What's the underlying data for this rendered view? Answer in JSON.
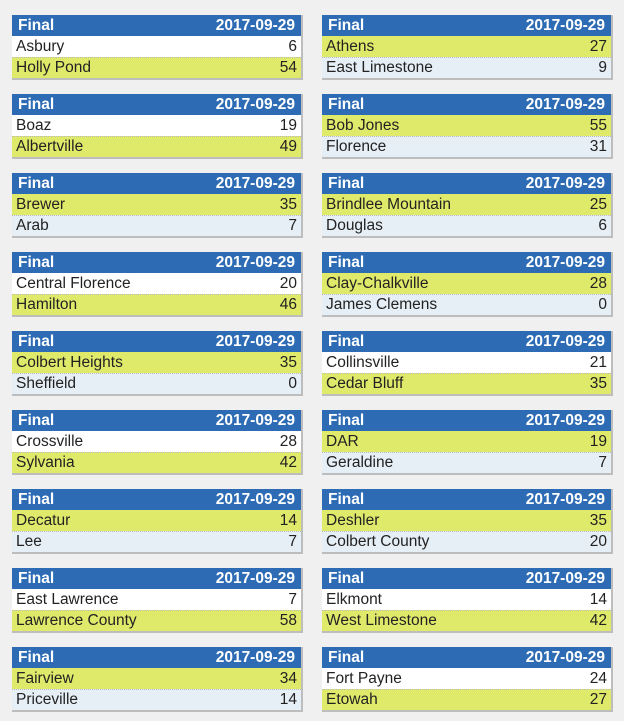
{
  "colors": {
    "header_bg": "#2d6cb5",
    "winner_bg": "#e0ea6a",
    "loser_bg": "#e6eef6",
    "plain_bg": "#ffffff"
  },
  "games": [
    {
      "status": "Final",
      "date": "2017-09-29",
      "teams": [
        {
          "name": "Asbury",
          "score": "6",
          "style": "neutral"
        },
        {
          "name": "Holly Pond",
          "score": "54",
          "style": "win"
        }
      ]
    },
    {
      "status": "Final",
      "date": "2017-09-29",
      "teams": [
        {
          "name": "Athens",
          "score": "27",
          "style": "win"
        },
        {
          "name": "East Limestone",
          "score": "9",
          "style": "lose"
        }
      ]
    },
    {
      "status": "Final",
      "date": "2017-09-29",
      "teams": [
        {
          "name": "Boaz",
          "score": "19",
          "style": "neutral"
        },
        {
          "name": "Albertville",
          "score": "49",
          "style": "win"
        }
      ]
    },
    {
      "status": "Final",
      "date": "2017-09-29",
      "teams": [
        {
          "name": "Bob Jones",
          "score": "55",
          "style": "win"
        },
        {
          "name": "Florence",
          "score": "31",
          "style": "lose"
        }
      ]
    },
    {
      "status": "Final",
      "date": "2017-09-29",
      "teams": [
        {
          "name": "Brewer",
          "score": "35",
          "style": "win"
        },
        {
          "name": "Arab",
          "score": "7",
          "style": "lose"
        }
      ]
    },
    {
      "status": "Final",
      "date": "2017-09-29",
      "teams": [
        {
          "name": "Brindlee Mountain",
          "score": "25",
          "style": "win"
        },
        {
          "name": "Douglas",
          "score": "6",
          "style": "lose"
        }
      ]
    },
    {
      "status": "Final",
      "date": "2017-09-29",
      "teams": [
        {
          "name": "Central Florence",
          "score": "20",
          "style": "neutral"
        },
        {
          "name": "Hamilton",
          "score": "46",
          "style": "win"
        }
      ]
    },
    {
      "status": "Final",
      "date": "2017-09-29",
      "teams": [
        {
          "name": "Clay-Chalkville",
          "score": "28",
          "style": "win"
        },
        {
          "name": "James Clemens",
          "score": "0",
          "style": "lose"
        }
      ]
    },
    {
      "status": "Final",
      "date": "2017-09-29",
      "teams": [
        {
          "name": "Colbert Heights",
          "score": "35",
          "style": "win"
        },
        {
          "name": "Sheffield",
          "score": "0",
          "style": "lose"
        }
      ]
    },
    {
      "status": "Final",
      "date": "2017-09-29",
      "teams": [
        {
          "name": "Collinsville",
          "score": "21",
          "style": "neutral"
        },
        {
          "name": "Cedar Bluff",
          "score": "35",
          "style": "win"
        }
      ]
    },
    {
      "status": "Final",
      "date": "2017-09-29",
      "teams": [
        {
          "name": "Crossville",
          "score": "28",
          "style": "neutral"
        },
        {
          "name": "Sylvania",
          "score": "42",
          "style": "win"
        }
      ]
    },
    {
      "status": "Final",
      "date": "2017-09-29",
      "teams": [
        {
          "name": "DAR",
          "score": "19",
          "style": "win"
        },
        {
          "name": "Geraldine",
          "score": "7",
          "style": "lose"
        }
      ]
    },
    {
      "status": "Final",
      "date": "2017-09-29",
      "teams": [
        {
          "name": "Decatur",
          "score": "14",
          "style": "win"
        },
        {
          "name": "Lee",
          "score": "7",
          "style": "lose"
        }
      ]
    },
    {
      "status": "Final",
      "date": "2017-09-29",
      "teams": [
        {
          "name": "Deshler",
          "score": "35",
          "style": "win"
        },
        {
          "name": "Colbert County",
          "score": "20",
          "style": "lose"
        }
      ]
    },
    {
      "status": "Final",
      "date": "2017-09-29",
      "teams": [
        {
          "name": "East Lawrence",
          "score": "7",
          "style": "neutral"
        },
        {
          "name": "Lawrence County",
          "score": "58",
          "style": "win"
        }
      ]
    },
    {
      "status": "Final",
      "date": "2017-09-29",
      "teams": [
        {
          "name": "Elkmont",
          "score": "14",
          "style": "neutral"
        },
        {
          "name": "West Limestone",
          "score": "42",
          "style": "win"
        }
      ]
    },
    {
      "status": "Final",
      "date": "2017-09-29",
      "teams": [
        {
          "name": "Fairview",
          "score": "34",
          "style": "win"
        },
        {
          "name": "Priceville",
          "score": "14",
          "style": "lose"
        }
      ]
    },
    {
      "status": "Final",
      "date": "2017-09-29",
      "teams": [
        {
          "name": "Fort Payne",
          "score": "24",
          "style": "neutral"
        },
        {
          "name": "Etowah",
          "score": "27",
          "style": "win"
        }
      ]
    }
  ]
}
